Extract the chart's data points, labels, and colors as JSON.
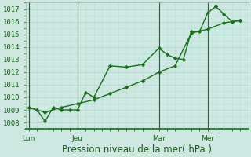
{
  "background_color": "#cce8e0",
  "grid_color": "#b8ddd5",
  "line_color": "#1a6e1a",
  "marker_color": "#1a6e1a",
  "title": "Pression niveau de la mer( hPa )",
  "title_color": "#1a5c1a",
  "ylim": [
    1007.5,
    1017.5
  ],
  "yticks": [
    1008,
    1009,
    1010,
    1011,
    1012,
    1013,
    1014,
    1015,
    1016,
    1017
  ],
  "xtick_labels": [
    "Lun",
    "Jeu",
    "Mar",
    "Mer"
  ],
  "xtick_positions": [
    0,
    3,
    8,
    11
  ],
  "xlim": [
    -0.2,
    13.5
  ],
  "series1_x": [
    0,
    0.5,
    1,
    1.5,
    2,
    2.5,
    3,
    3.5,
    4,
    5,
    6,
    7,
    8,
    8.5,
    9,
    9.5,
    10,
    10.5,
    11,
    11.5,
    12,
    12.5,
    13
  ],
  "series1_y": [
    1009.2,
    1009.0,
    1008.1,
    1009.2,
    1009.0,
    1009.0,
    1009.0,
    1010.4,
    1010.0,
    1012.5,
    1012.4,
    1012.6,
    1013.9,
    1013.4,
    1013.1,
    1013.0,
    1015.2,
    1015.2,
    1016.7,
    1017.2,
    1016.6,
    1016.0,
    1016.1
  ],
  "series2_x": [
    0,
    1,
    2,
    3,
    4,
    5,
    6,
    7,
    8,
    9,
    10,
    11,
    12,
    13
  ],
  "series2_y": [
    1009.2,
    1008.8,
    1009.2,
    1009.5,
    1009.8,
    1010.3,
    1010.8,
    1011.3,
    1012.0,
    1012.5,
    1015.1,
    1015.4,
    1015.9,
    1016.1
  ],
  "vline_positions": [
    0,
    3,
    8,
    11
  ],
  "vline_color": "#1a6e1a",
  "tick_label_color": "#1a5c1a",
  "tick_label_fontsize": 6.5,
  "title_fontsize": 8.5,
  "linewidth": 1.0,
  "markersize": 2.2
}
